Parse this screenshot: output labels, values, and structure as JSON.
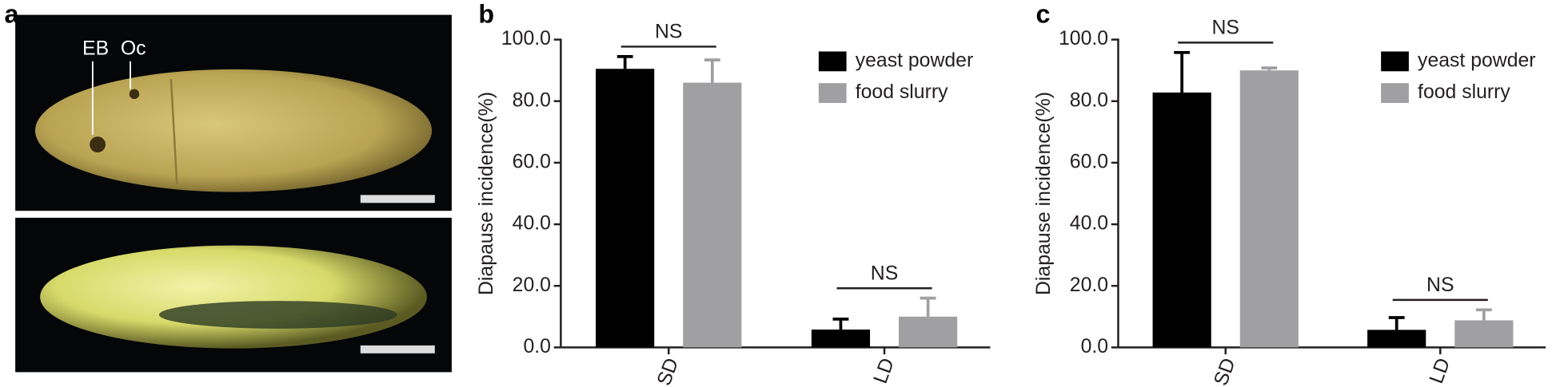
{
  "panel_a": {
    "label": "a",
    "annotations": [
      "EB",
      "Oc"
    ]
  },
  "chart_data": [
    {
      "type": "bar",
      "panel_label": "b",
      "y_label": "Diapause incidence(%)",
      "categories": [
        "SD",
        "LD"
      ],
      "annotations": [
        "NS",
        "NS"
      ],
      "series": [
        {
          "name": "yeast powder",
          "color": "#000000",
          "values": [
            90.5,
            5.8
          ],
          "errors": [
            4.0,
            3.4
          ]
        },
        {
          "name": "food slurry",
          "color": "#a0a0a2",
          "values": [
            86.0,
            10.0
          ],
          "errors": [
            7.4,
            6.0
          ]
        }
      ],
      "ylim": [
        0,
        100
      ],
      "yticks": [
        {
          "value": 0,
          "label": "0.0"
        },
        {
          "value": 20,
          "label": "20.0"
        },
        {
          "value": 40,
          "label": "40.0"
        },
        {
          "value": 60,
          "label": "60.0"
        },
        {
          "value": 80,
          "label": "80.0"
        },
        {
          "value": 100,
          "label": "100.0"
        }
      ]
    },
    {
      "type": "bar",
      "panel_label": "c",
      "y_label": "Diapause incidence(%)",
      "categories": [
        "SD",
        "LD"
      ],
      "annotations": [
        "NS",
        "NS"
      ],
      "series": [
        {
          "name": "yeast powder",
          "color": "#000000",
          "values": [
            82.8,
            5.7
          ],
          "errors": [
            13.0,
            4.0
          ]
        },
        {
          "name": "food slurry",
          "color": "#a0a0a2",
          "values": [
            90.0,
            8.8
          ],
          "errors": [
            0.8,
            3.4
          ]
        }
      ],
      "ylim": [
        0,
        100
      ],
      "yticks": [
        {
          "value": 0,
          "label": "0.0"
        },
        {
          "value": 20,
          "label": "20.0"
        },
        {
          "value": 40,
          "label": "40.0"
        },
        {
          "value": 60,
          "label": "60.0"
        },
        {
          "value": 80,
          "label": "80.0"
        },
        {
          "value": 100,
          "label": "100.0"
        }
      ]
    }
  ]
}
